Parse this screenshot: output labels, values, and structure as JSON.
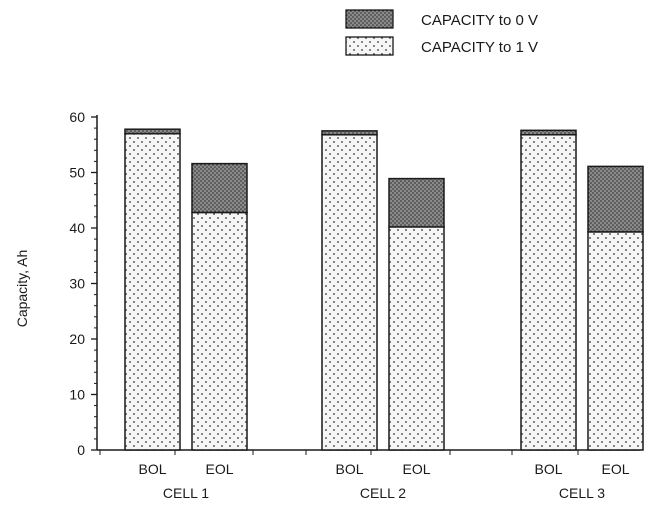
{
  "chart_data": {
    "type": "bar",
    "stacked": true,
    "ylabel": "Capacity, Ah",
    "ylim": [
      0,
      60
    ],
    "yticks": [
      0,
      10,
      20,
      30,
      40,
      50,
      60
    ],
    "groups": [
      {
        "name": "CELL 1",
        "categories": [
          "BOL",
          "EOL"
        ]
      },
      {
        "name": "CELL 2",
        "categories": [
          "BOL",
          "EOL"
        ]
      },
      {
        "name": "CELL 3",
        "categories": [
          "BOL",
          "EOL"
        ]
      }
    ],
    "series": [
      {
        "name": "CAPACITY to 1 V",
        "pattern": "dotted",
        "values": [
          57.0,
          42.8,
          56.8,
          40.2,
          56.8,
          39.3
        ]
      },
      {
        "name": "CAPACITY to 0 V",
        "pattern": "crosshatch",
        "values": [
          0.8,
          8.8,
          0.7,
          8.7,
          0.8,
          11.8
        ]
      }
    ],
    "legend": {
      "position": "top-right",
      "order": [
        "CAPACITY to 0 V",
        "CAPACITY to 1 V"
      ]
    },
    "grid": false,
    "colors": {
      "ink": "#1a1a1a",
      "fill": "#f4f4f4",
      "hatch": "#6e6e6e"
    }
  }
}
